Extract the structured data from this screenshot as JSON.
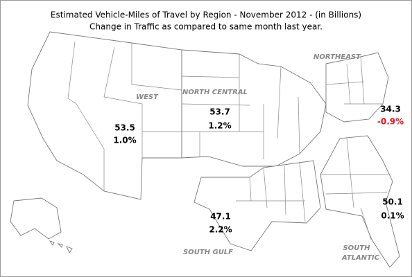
{
  "title": "Estimated Vehicle-Miles of Travel by Region - November 2012 - (in Billions)",
  "subtitle": "Change in Traffic as compared to same month last year.",
  "regions": [
    {
      "name_lines": [
        "WEST"
      ],
      "miles": "53.5",
      "change": "1.0%",
      "change_color": "#000000"
    },
    {
      "name_lines": [
        "NORTH CENTRAL"
      ],
      "miles": "53.7",
      "change": "1.2%",
      "change_color": "#000000"
    },
    {
      "name_lines": [
        "NORTHEAST"
      ],
      "miles": "34.3",
      "change": "-0.9%",
      "change_color": "#e8141b"
    },
    {
      "name_lines": [
        "SOUTH GULF"
      ],
      "miles": "47.1",
      "change": "2.2%",
      "change_color": "#000000"
    },
    {
      "name_lines": [
        "SOUTH",
        "ATLANTIC"
      ],
      "miles": "50.1",
      "change": "0.1%",
      "change_color": "#000000"
    }
  ]
}
